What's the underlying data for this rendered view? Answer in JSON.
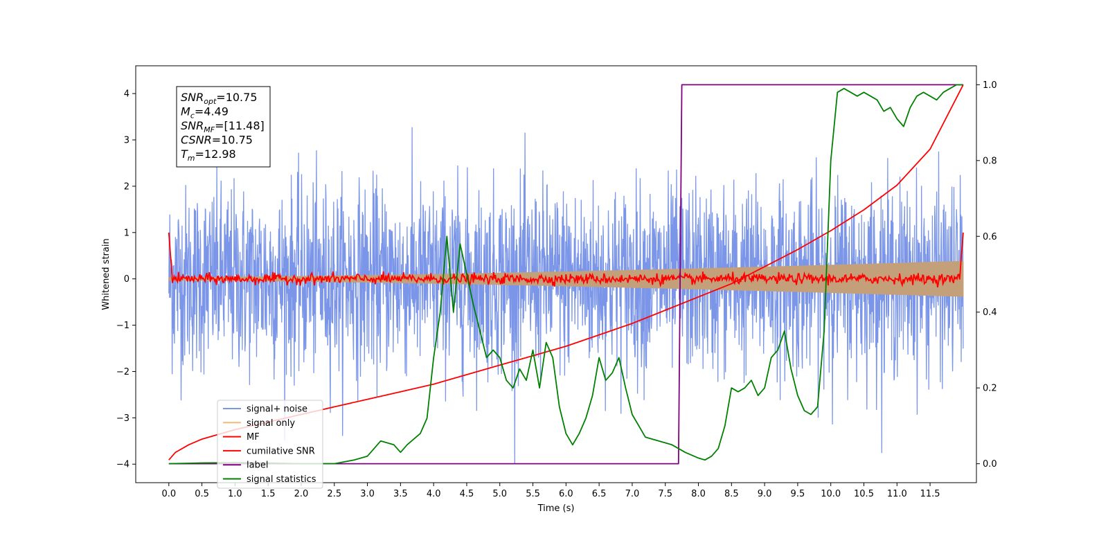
{
  "chart_data": {
    "type": "line",
    "title": "",
    "xlabel": "Time (s)",
    "ylabel": "Whitened strain",
    "y2label": "",
    "xlim": [
      -0.5,
      12.2
    ],
    "ylim": [
      -4.4,
      4.6
    ],
    "y2lim": [
      -0.05,
      1.05
    ],
    "xticks": [
      "0.0",
      "0.5",
      "1.0",
      "1.5",
      "2.0",
      "2.5",
      "3.0",
      "3.5",
      "4.0",
      "4.5",
      "5.0",
      "5.5",
      "6.0",
      "6.5",
      "7.0",
      "7.5",
      "8.0",
      "8.5",
      "9.0",
      "9.5",
      "10.0",
      "10.5",
      "11.0",
      "11.5"
    ],
    "yticks": [
      "−4",
      "−3",
      "−2",
      "−1",
      "0",
      "1",
      "2",
      "3",
      "4"
    ],
    "y2ticks": [
      "0.0",
      "0.2",
      "0.4",
      "0.6",
      "0.8",
      "1.0"
    ],
    "grid": false,
    "legend_position": "lower-left",
    "annotation_box": {
      "lines": [
        {
          "sym": "SNR",
          "sub": "opt",
          "val": "=10.75"
        },
        {
          "sym": "M",
          "sub": "c",
          "val": "=4.49"
        },
        {
          "sym": "SNR",
          "sub": "MF",
          "val": "=[11.48]"
        },
        {
          "sym": "CSNR",
          "sub": "",
          "val": "=10.75"
        },
        {
          "sym": "T",
          "sub": "m",
          "val": "=12.98"
        }
      ]
    },
    "series": [
      {
        "name": "signal+ noise",
        "color": "#7b96e8",
        "axis": "left",
        "kind": "noise",
        "t_start": 0.0,
        "t_end": 12.0,
        "amplitude_sigma": 1.0,
        "range": [
          -4.0,
          4.2
        ]
      },
      {
        "name": "signal only",
        "color": "#f5b97a",
        "axis": "left",
        "kind": "chirp",
        "t_start": 0.0,
        "t_end": 12.0,
        "envelope_start": 0.03,
        "envelope_end": 0.38
      },
      {
        "name": "MF",
        "color": "#ff0000",
        "axis": "left",
        "kind": "matched-filter",
        "t_start": 0.0,
        "t_end": 12.0,
        "end_values": [
          1.0,
          1.0
        ],
        "band": 0.12
      },
      {
        "name": "cumilative SNR",
        "color": "#ff0000",
        "axis": "right",
        "x": [
          0.0,
          0.1,
          0.3,
          0.5,
          1.0,
          1.5,
          2.0,
          2.5,
          3.0,
          3.5,
          4.0,
          4.5,
          5.0,
          5.5,
          6.0,
          6.5,
          7.0,
          7.5,
          8.0,
          8.5,
          9.0,
          9.5,
          10.0,
          10.5,
          11.0,
          11.5,
          12.0
        ],
        "values": [
          0.01,
          0.03,
          0.05,
          0.065,
          0.09,
          0.11,
          0.13,
          0.15,
          0.17,
          0.19,
          0.21,
          0.235,
          0.26,
          0.285,
          0.31,
          0.34,
          0.37,
          0.405,
          0.44,
          0.475,
          0.52,
          0.565,
          0.615,
          0.67,
          0.735,
          0.83,
          1.0
        ]
      },
      {
        "name": "label",
        "color": "#800080",
        "axis": "right",
        "x": [
          0.0,
          7.7,
          7.75,
          12.0
        ],
        "values": [
          0.0,
          0.0,
          1.0,
          1.0
        ]
      },
      {
        "name": "signal statistics",
        "color": "#008000",
        "axis": "right",
        "x": [
          0.0,
          0.5,
          1.0,
          1.5,
          2.0,
          2.5,
          2.8,
          3.0,
          3.2,
          3.4,
          3.5,
          3.6,
          3.8,
          3.9,
          4.0,
          4.1,
          4.2,
          4.3,
          4.4,
          4.5,
          4.6,
          4.7,
          4.8,
          4.9,
          5.0,
          5.1,
          5.2,
          5.3,
          5.4,
          5.5,
          5.6,
          5.7,
          5.8,
          5.9,
          6.0,
          6.1,
          6.2,
          6.3,
          6.4,
          6.5,
          6.6,
          6.7,
          6.8,
          6.9,
          7.0,
          7.2,
          7.4,
          7.6,
          7.7,
          7.8,
          8.0,
          8.1,
          8.2,
          8.3,
          8.4,
          8.5,
          8.6,
          8.7,
          8.8,
          8.9,
          9.0,
          9.1,
          9.2,
          9.3,
          9.4,
          9.5,
          9.6,
          9.7,
          9.8,
          9.9,
          10.0,
          10.1,
          10.2,
          10.3,
          10.4,
          10.5,
          10.6,
          10.7,
          10.8,
          10.9,
          11.0,
          11.1,
          11.2,
          11.3,
          11.4,
          11.5,
          11.6,
          11.7,
          11.8,
          11.9,
          12.0
        ],
        "values": [
          0.0,
          0.002,
          0.003,
          0.002,
          0.0,
          0.0,
          0.01,
          0.02,
          0.06,
          0.05,
          0.03,
          0.05,
          0.08,
          0.12,
          0.28,
          0.4,
          0.6,
          0.4,
          0.58,
          0.5,
          0.42,
          0.35,
          0.28,
          0.3,
          0.28,
          0.22,
          0.2,
          0.25,
          0.22,
          0.3,
          0.2,
          0.32,
          0.28,
          0.15,
          0.08,
          0.05,
          0.08,
          0.12,
          0.18,
          0.28,
          0.22,
          0.24,
          0.28,
          0.2,
          0.13,
          0.07,
          0.06,
          0.05,
          0.04,
          0.03,
          0.015,
          0.01,
          0.02,
          0.04,
          0.1,
          0.2,
          0.19,
          0.2,
          0.22,
          0.18,
          0.2,
          0.28,
          0.3,
          0.35,
          0.25,
          0.18,
          0.14,
          0.13,
          0.15,
          0.35,
          0.8,
          0.98,
          0.99,
          0.98,
          0.97,
          0.98,
          0.97,
          0.96,
          0.93,
          0.94,
          0.91,
          0.89,
          0.94,
          0.97,
          0.98,
          0.97,
          0.96,
          0.98,
          0.99,
          1.0,
          1.0
        ]
      }
    ]
  }
}
